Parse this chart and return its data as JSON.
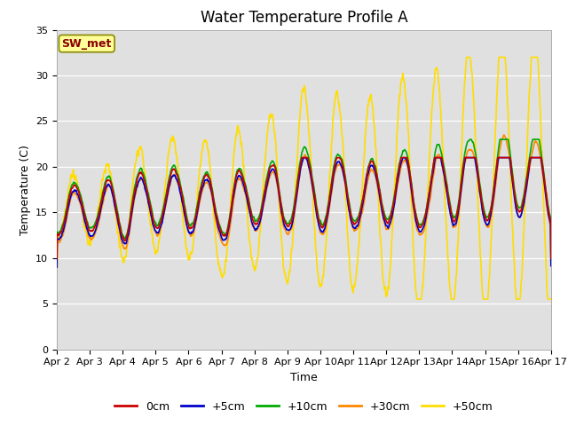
{
  "title": "Water Temperature Profile A",
  "xlabel": "Time",
  "ylabel": "Temperature (C)",
  "ylim": [
    0,
    35
  ],
  "x_tick_labels": [
    "Apr 2",
    "Apr 3",
    "Apr 4",
    "Apr 5",
    "Apr 6",
    "Apr 7",
    "Apr 8",
    "Apr 9",
    "Apr 10",
    "Apr 11",
    "Apr 12",
    "Apr 13",
    "Apr 14",
    "Apr 15",
    "Apr 16",
    "Apr 17"
  ],
  "background_color": "#ffffff",
  "plot_bg_color": "#e0e0e0",
  "annotation_label": "SW_met",
  "annotation_bg": "#ffff99",
  "annotation_border": "#888800",
  "annotation_text_color": "#880000",
  "line_colors": {
    "0cm": "#cc0000",
    "+5cm": "#0000cc",
    "+10cm": "#00aa00",
    "+30cm": "#ff8800",
    "+50cm": "#ffdd00"
  },
  "line_width": 1.2,
  "title_fontsize": 12,
  "axis_label_fontsize": 9,
  "tick_fontsize": 8
}
